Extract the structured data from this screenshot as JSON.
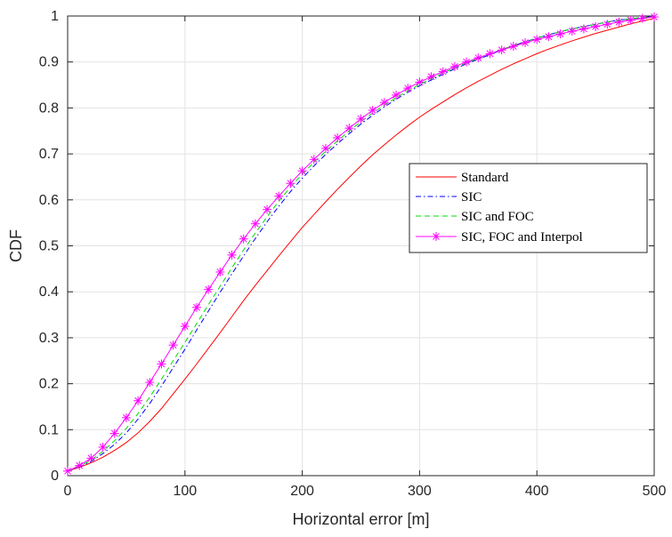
{
  "chart_data": {
    "type": "line",
    "title": "",
    "xlabel": "Horizontal error [m]",
    "ylabel": "CDF",
    "xlim": [
      0,
      500
    ],
    "ylim": [
      0,
      1
    ],
    "xticks": [
      0,
      100,
      200,
      300,
      400,
      500
    ],
    "yticks": [
      0,
      0.1,
      0.2,
      0.3,
      0.4,
      0.5,
      0.6,
      0.7,
      0.8,
      0.9,
      1
    ],
    "xtick_labels": [
      "0",
      "100",
      "200",
      "300",
      "400",
      "500"
    ],
    "ytick_labels": [
      "0",
      "0.1",
      "0.2",
      "0.3",
      "0.4",
      "0.5",
      "0.6",
      "0.7",
      "0.8",
      "0.9",
      "1"
    ],
    "grid": true,
    "legend_position": "right",
    "x": [
      0,
      10,
      20,
      30,
      40,
      50,
      60,
      70,
      80,
      90,
      100,
      110,
      120,
      130,
      140,
      150,
      160,
      170,
      180,
      190,
      200,
      210,
      220,
      230,
      240,
      250,
      260,
      270,
      280,
      290,
      300,
      310,
      320,
      330,
      340,
      350,
      360,
      370,
      380,
      390,
      400,
      410,
      420,
      430,
      440,
      450,
      460,
      470,
      480,
      490,
      500
    ],
    "series": [
      {
        "name": "Standard",
        "color": "#ff0000",
        "dash": "solid",
        "marker": "none",
        "values": [
          0.01,
          0.018,
          0.028,
          0.04,
          0.055,
          0.072,
          0.093,
          0.118,
          0.146,
          0.178,
          0.21,
          0.243,
          0.277,
          0.311,
          0.346,
          0.381,
          0.414,
          0.446,
          0.478,
          0.509,
          0.54,
          0.568,
          0.596,
          0.623,
          0.649,
          0.674,
          0.698,
          0.72,
          0.741,
          0.761,
          0.78,
          0.797,
          0.813,
          0.829,
          0.844,
          0.858,
          0.871,
          0.884,
          0.896,
          0.907,
          0.918,
          0.928,
          0.937,
          0.946,
          0.954,
          0.962,
          0.969,
          0.976,
          0.983,
          0.989,
          0.995
        ]
      },
      {
        "name": "SIC",
        "color": "#0000ff",
        "dash": "dashdot",
        "marker": "none",
        "values": [
          0.01,
          0.019,
          0.031,
          0.048,
          0.068,
          0.093,
          0.123,
          0.157,
          0.195,
          0.235,
          0.275,
          0.317,
          0.358,
          0.399,
          0.439,
          0.478,
          0.516,
          0.552,
          0.586,
          0.618,
          0.647,
          0.674,
          0.699,
          0.722,
          0.744,
          0.765,
          0.784,
          0.802,
          0.819,
          0.834,
          0.848,
          0.861,
          0.873,
          0.885,
          0.896,
          0.906,
          0.916,
          0.926,
          0.935,
          0.944,
          0.952,
          0.959,
          0.966,
          0.972,
          0.977,
          0.982,
          0.987,
          0.991,
          0.994,
          0.997,
          0.999
        ]
      },
      {
        "name": "SIC and FOC",
        "color": "#00dd00",
        "dash": "dashed",
        "marker": "none",
        "values": [
          0.01,
          0.02,
          0.034,
          0.053,
          0.076,
          0.103,
          0.135,
          0.171,
          0.21,
          0.25,
          0.29,
          0.331,
          0.372,
          0.412,
          0.452,
          0.491,
          0.528,
          0.563,
          0.597,
          0.628,
          0.656,
          0.682,
          0.706,
          0.728,
          0.75,
          0.77,
          0.789,
          0.806,
          0.822,
          0.837,
          0.851,
          0.864,
          0.876,
          0.887,
          0.898,
          0.908,
          0.918,
          0.927,
          0.936,
          0.944,
          0.952,
          0.959,
          0.966,
          0.972,
          0.977,
          0.982,
          0.987,
          0.991,
          0.994,
          0.997,
          0.999
        ]
      },
      {
        "name": "SIC, FOC and Interpol",
        "color": "#ff00ff",
        "dash": "solid",
        "marker": "asterisk",
        "values": [
          0.01,
          0.022,
          0.038,
          0.062,
          0.092,
          0.126,
          0.163,
          0.203,
          0.243,
          0.284,
          0.325,
          0.366,
          0.405,
          0.443,
          0.48,
          0.515,
          0.548,
          0.579,
          0.608,
          0.636,
          0.663,
          0.688,
          0.712,
          0.735,
          0.756,
          0.776,
          0.795,
          0.812,
          0.828,
          0.843,
          0.856,
          0.868,
          0.879,
          0.89,
          0.9,
          0.909,
          0.918,
          0.926,
          0.934,
          0.942,
          0.949,
          0.955,
          0.961,
          0.967,
          0.972,
          0.977,
          0.982,
          0.987,
          0.991,
          0.995,
          0.998
        ]
      }
    ]
  }
}
